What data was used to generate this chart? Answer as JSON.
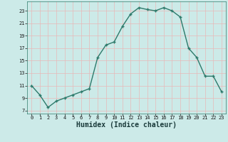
{
  "x": [
    0,
    1,
    2,
    3,
    4,
    5,
    6,
    7,
    8,
    9,
    10,
    11,
    12,
    13,
    14,
    15,
    16,
    17,
    18,
    19,
    20,
    21,
    22,
    23
  ],
  "y": [
    11,
    9.5,
    7.5,
    8.5,
    9,
    9.5,
    10,
    10.5,
    15.5,
    17.5,
    18,
    20.5,
    22.5,
    23.5,
    23.2,
    23.0,
    23.5,
    23.0,
    22.0,
    17.0,
    15.5,
    12.5,
    12.5,
    10.0
  ],
  "xlabel": "Humidex (Indice chaleur)",
  "ylim": [
    6.5,
    24.5
  ],
  "xlim": [
    -0.5,
    23.5
  ],
  "yticks": [
    7,
    9,
    11,
    13,
    15,
    17,
    19,
    21,
    23
  ],
  "xticks": [
    0,
    1,
    2,
    3,
    4,
    5,
    6,
    7,
    8,
    9,
    10,
    11,
    12,
    13,
    14,
    15,
    16,
    17,
    18,
    19,
    20,
    21,
    22,
    23
  ],
  "xtick_labels": [
    "0",
    "1",
    "2",
    "3",
    "4",
    "5",
    "6",
    "7",
    "8",
    "9",
    "10",
    "11",
    "12",
    "13",
    "14",
    "15",
    "16",
    "17",
    "18",
    "19",
    "20",
    "21",
    "22",
    "23"
  ],
  "line_color": "#2d7a6b",
  "marker_color": "#2d7a6b",
  "bg_color": "#cceae8",
  "grid_color_v": "#e8b8b8",
  "grid_color_h": "#e8b8b8",
  "xlabel_fontsize": 7,
  "tick_fontsize": 5
}
